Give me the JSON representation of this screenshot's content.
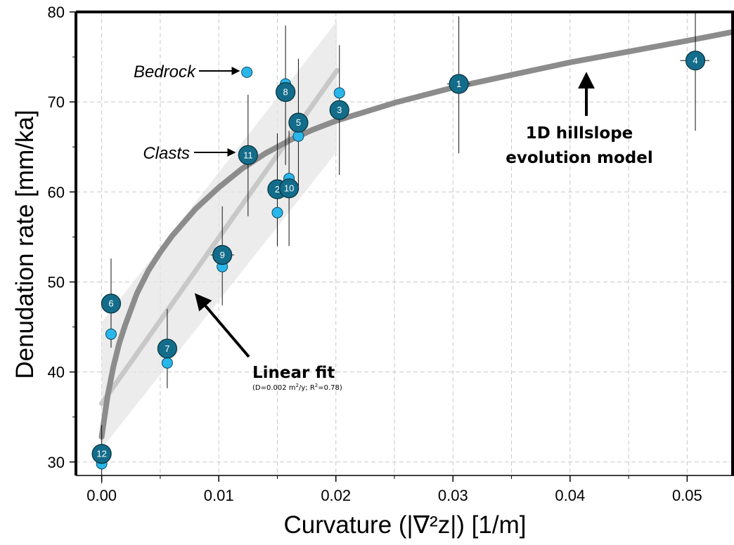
{
  "chart_data": {
    "type": "scatter",
    "xlabel": "Curvature (|∇²z|) [1/m]",
    "ylabel": "Denudation rate [mm/ka]",
    "xlim": [
      -0.0022,
      0.054
    ],
    "ylim": [
      28.5,
      80
    ],
    "x_ticks": [
      0.0,
      0.01,
      0.02,
      0.03,
      0.04,
      0.05
    ],
    "x_tick_labels": [
      "0.00",
      "0.01",
      "0.02",
      "0.03",
      "0.04",
      "0.05"
    ],
    "y_ticks": [
      30,
      40,
      50,
      60,
      70,
      80
    ],
    "y_tick_labels": [
      "30",
      "40",
      "50",
      "60",
      "70",
      "80"
    ],
    "grid": true,
    "series": [
      {
        "name": "Clasts",
        "marker": "large-dark-circle-numbered",
        "color": "#136d8a",
        "points": [
          {
            "label": "1",
            "x": 0.0305,
            "y": 72.0,
            "yerr": [
              64.3,
              79.5
            ],
            "xerr": [
              0.0295,
              0.0315
            ]
          },
          {
            "label": "2",
            "x": 0.015,
            "y": 60.3,
            "yerr": [
              54.0,
              66.5
            ],
            "xerr": null
          },
          {
            "label": "3",
            "x": 0.0203,
            "y": 69.1,
            "yerr": [
              61.9,
              76.3
            ],
            "xerr": null
          },
          {
            "label": "4",
            "x": 0.0507,
            "y": 74.6,
            "yerr": [
              66.8,
              82.0
            ],
            "xerr": [
              0.0494,
              0.0519
            ]
          },
          {
            "label": "5",
            "x": 0.0168,
            "y": 67.7,
            "yerr": [
              60.5,
              74.8
            ],
            "xerr": null
          },
          {
            "label": "6",
            "x": 0.0008,
            "y": 47.6,
            "yerr": [
              42.7,
              52.6
            ],
            "xerr": null
          },
          {
            "label": "7",
            "x": 0.0056,
            "y": 42.6,
            "yerr": [
              38.2,
              47.0
            ],
            "xerr": null
          },
          {
            "label": "8",
            "x": 0.0157,
            "y": 71.1,
            "yerr": [
              63.0,
              78.5
            ],
            "xerr": null
          },
          {
            "label": "9",
            "x": 0.0103,
            "y": 53.0,
            "yerr": [
              47.4,
              58.4
            ],
            "xerr": [
              0.0093,
              0.0113
            ]
          },
          {
            "label": "10",
            "x": 0.016,
            "y": 60.4,
            "yerr": [
              54.0,
              66.8
            ],
            "xerr": null
          },
          {
            "label": "11",
            "x": 0.0125,
            "y": 64.1,
            "yerr": [
              57.3,
              70.8
            ],
            "xerr": null
          },
          {
            "label": "12",
            "x": 0.0,
            "y": 30.9,
            "yerr": [
              27.6,
              34.1
            ],
            "xerr": null
          }
        ]
      },
      {
        "name": "Bedrock",
        "marker": "small-light-circle",
        "color": "#29b6ea",
        "points": [
          {
            "x": 0.0124,
            "y": 73.3
          },
          {
            "x": 0.0157,
            "y": 72.0
          },
          {
            "x": 0.0203,
            "y": 71.0
          },
          {
            "x": 0.0168,
            "y": 66.2
          },
          {
            "x": 0.016,
            "y": 61.5
          },
          {
            "x": 0.015,
            "y": 57.7
          },
          {
            "x": 0.0103,
            "y": 51.7
          },
          {
            "x": 0.0008,
            "y": 44.2
          },
          {
            "x": 0.0056,
            "y": 41.0
          },
          {
            "x": 0.0,
            "y": 29.8
          }
        ]
      }
    ],
    "fits": [
      {
        "name": "1D hillslope evolution model",
        "color": "#8c8c8c",
        "x": [
          0.0,
          0.0005,
          0.001,
          0.0015,
          0.002,
          0.003,
          0.004,
          0.005,
          0.006,
          0.008,
          0.01,
          0.012,
          0.014,
          0.016,
          0.018,
          0.02,
          0.025,
          0.03,
          0.035,
          0.04,
          0.045,
          0.05,
          0.054
        ],
        "y": [
          32.8,
          37.3,
          40.6,
          43.2,
          45.2,
          48.7,
          51.3,
          53.3,
          55.1,
          58.1,
          60.5,
          62.6,
          64.3,
          65.7,
          66.9,
          67.9,
          69.9,
          71.6,
          73.0,
          74.4,
          75.6,
          76.8,
          77.8
        ]
      },
      {
        "name": "Linear fit",
        "color": "#c8c8c8",
        "x": [
          0.0,
          0.0201
        ],
        "y": [
          36.5,
          73.5
        ],
        "band_upper": [
          45.5,
          79.0
        ],
        "band_lower": [
          31.5,
          64.5
        ]
      }
    ],
    "annotations": {
      "bedrock": "Bedrock",
      "clasts": "Clasts",
      "model_line1": "1D hillslope",
      "model_line2": "evolution model",
      "linear_title": "Linear fit",
      "linear_detail_pre": "(D=0.002 m",
      "linear_detail_sup1": "2",
      "linear_detail_mid": "/y; R",
      "linear_detail_sup2": "2",
      "linear_detail_post": "=0.78)"
    }
  }
}
